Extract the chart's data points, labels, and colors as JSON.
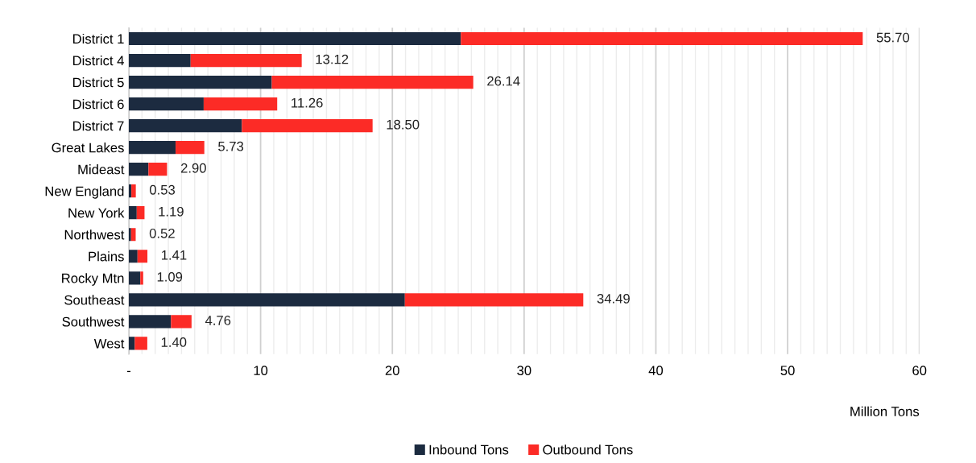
{
  "chart_data": {
    "type": "bar",
    "orientation": "horizontal",
    "stacked": true,
    "xlabel": "Million Tons",
    "categories": [
      "District 1",
      "District 4",
      "District 5",
      "District 6",
      "District 7",
      "Great Lakes",
      "Mideast",
      "New England",
      "New York",
      "Northwest",
      "Plains",
      "Rocky Mtn",
      "Southeast",
      "Southwest",
      "West"
    ],
    "series": [
      {
        "name": "Inbound Tons",
        "color": "#1c2b40",
        "values": [
          25.2,
          4.69,
          10.85,
          5.68,
          8.58,
          3.55,
          1.49,
          0.19,
          0.6,
          0.17,
          0.66,
          0.87,
          20.95,
          3.2,
          0.45
        ]
      },
      {
        "name": "Outbound Tons",
        "color": "#fc2b26",
        "values": [
          30.5,
          8.43,
          15.29,
          5.58,
          9.92,
          2.18,
          1.41,
          0.34,
          0.59,
          0.35,
          0.75,
          0.22,
          13.54,
          1.56,
          0.95
        ]
      }
    ],
    "totals": [
      "55.70",
      "13.12",
      "26.14",
      "11.26",
      "18.50",
      "5.73",
      "2.90",
      "0.53",
      "1.19",
      "0.52",
      "1.41",
      "1.09",
      "34.49",
      "4.76",
      "1.40"
    ],
    "xlim": [
      0,
      60
    ],
    "xticks": [
      {
        "value": 0,
        "label": "-"
      },
      {
        "value": 1,
        "label": null
      },
      {
        "value": 2,
        "label": null
      },
      {
        "value": 3,
        "label": null
      },
      {
        "value": 4,
        "label": null
      },
      {
        "value": 5,
        "label": null
      },
      {
        "value": 6,
        "label": null
      },
      {
        "value": 7,
        "label": null
      },
      {
        "value": 8,
        "label": null
      },
      {
        "value": 9,
        "label": null
      },
      10,
      {
        "value": 11,
        "label": null
      },
      {
        "value": 12,
        "label": null
      },
      {
        "value": 13,
        "label": null
      },
      {
        "value": 14,
        "label": null
      },
      {
        "value": 15,
        "label": null
      },
      {
        "value": 16,
        "label": null
      },
      {
        "value": 17,
        "label": null
      },
      {
        "value": 18,
        "label": null
      },
      {
        "value": 19,
        "label": null
      },
      20,
      {
        "value": 21,
        "label": null
      },
      {
        "value": 22,
        "label": null
      },
      {
        "value": 23,
        "label": null
      },
      {
        "value": 24,
        "label": null
      },
      {
        "value": 25,
        "label": null
      },
      {
        "value": 26,
        "label": null
      },
      {
        "value": 27,
        "label": null
      },
      {
        "value": 28,
        "label": null
      },
      {
        "value": 29,
        "label": null
      },
      30,
      {
        "value": 31,
        "label": null
      },
      {
        "value": 32,
        "label": null
      },
      {
        "value": 33,
        "label": null
      },
      {
        "value": 34,
        "label": null
      },
      {
        "value": 35,
        "label": null
      },
      {
        "value": 36,
        "label": null
      },
      {
        "value": 37,
        "label": null
      },
      {
        "value": 38,
        "label": null
      },
      {
        "value": 39,
        "label": null
      },
      40,
      {
        "value": 41,
        "label": null
      },
      {
        "value": 42,
        "label": null
      },
      {
        "value": 43,
        "label": null
      },
      {
        "value": 44,
        "label": null
      },
      {
        "value": 45,
        "label": null
      },
      {
        "value": 46,
        "label": null
      },
      {
        "value": 47,
        "label": null
      },
      {
        "value": 48,
        "label": null
      },
      {
        "value": 49,
        "label": null
      },
      50,
      {
        "value": 51,
        "label": null
      },
      {
        "value": 52,
        "label": null
      },
      {
        "value": 53,
        "label": null
      },
      {
        "value": 54,
        "label": null
      },
      {
        "value": 55,
        "label": null
      },
      {
        "value": 56,
        "label": null
      },
      {
        "value": 57,
        "label": null
      },
      {
        "value": 58,
        "label": null
      },
      {
        "value": 59,
        "label": null
      },
      60
    ],
    "grid": "x",
    "legend": "bottom"
  }
}
